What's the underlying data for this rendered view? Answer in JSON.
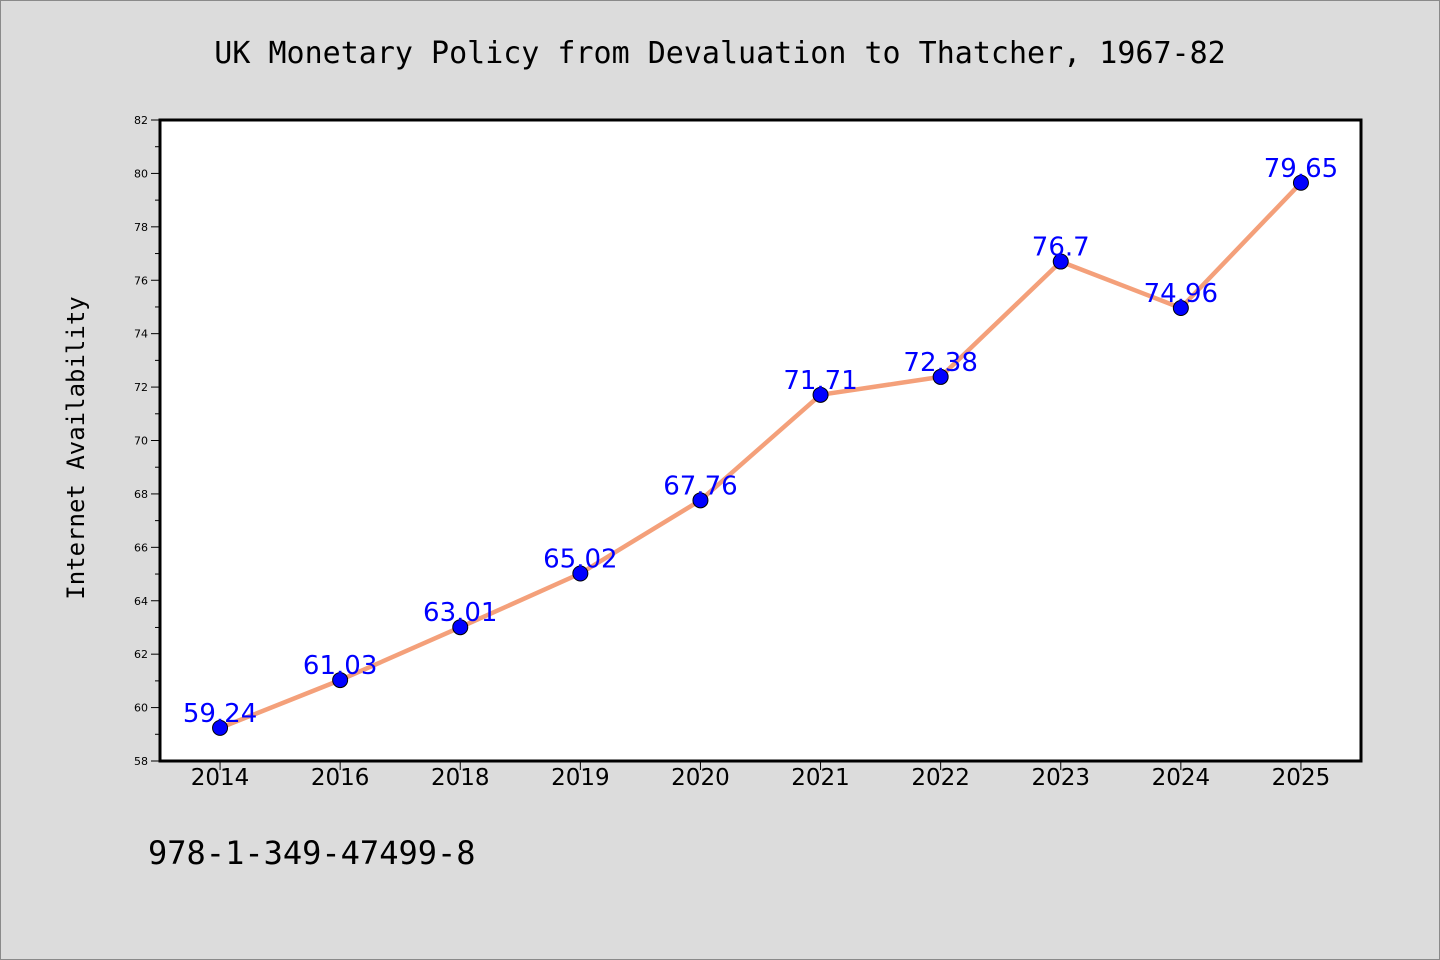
{
  "chart_data": {
    "type": "line",
    "title": "UK Monetary Policy from Devaluation to Thatcher, 1967-82",
    "xlabel": "",
    "ylabel": "Internet Availability",
    "categories": [
      "2014",
      "2016",
      "2018",
      "2019",
      "2020",
      "2021",
      "2022",
      "2023",
      "2024",
      "2025"
    ],
    "series": [
      {
        "values": [
          59.24,
          61.03,
          63.01,
          65.02,
          67.76,
          71.71,
          72.38,
          76.7,
          74.96,
          79.65
        ],
        "line_color": "#f4a07a",
        "marker_color": "#0000ff"
      }
    ],
    "data_labels": [
      "59.24",
      "61.03",
      "63.01",
      "65.02",
      "67.76",
      "71.71",
      "72.38",
      "76.7",
      "74.96",
      "79.65"
    ],
    "ylim": [
      58,
      82
    ],
    "yticks": [
      58,
      60,
      62,
      64,
      66,
      68,
      70,
      72,
      74,
      76,
      78,
      80,
      82
    ],
    "grid": false,
    "legend": "none",
    "label_color": "#0000ff",
    "background": "#dcdcdc",
    "plot_background": "#ffffff"
  },
  "footer": {
    "isbn": "978-1-349-47499-8"
  }
}
